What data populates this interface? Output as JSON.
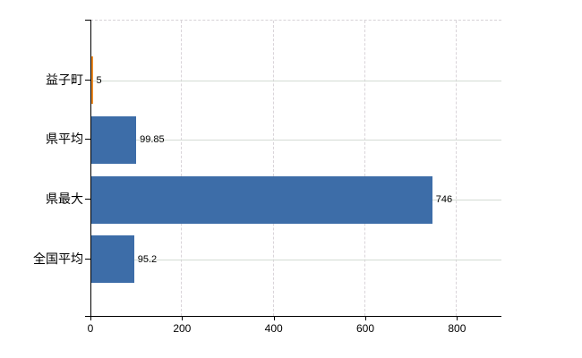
{
  "chart_data": {
    "type": "bar",
    "orientation": "horizontal",
    "title": "",
    "xlabel": "",
    "ylabel": "",
    "categories": [
      "益子町",
      "県平均",
      "県最大",
      "全国平均"
    ],
    "values": [
      5,
      99.85,
      746,
      95.2
    ],
    "value_labels": [
      "5",
      "99.85",
      "746",
      "95.2"
    ],
    "series": [
      {
        "name": "value",
        "values": [
          5,
          99.85,
          746,
          95.2
        ]
      }
    ],
    "bar_colors": [
      "#ec8b27",
      "#3d6da8",
      "#3d6da8",
      "#3d6da8"
    ],
    "x_ticks": [
      0,
      200,
      400,
      600,
      800
    ],
    "x_tick_labels": [
      "0",
      "200",
      "400",
      "600",
      "800"
    ],
    "xlim": [
      0,
      897
    ],
    "grid": true,
    "legend": false
  },
  "colors": {
    "bar_default": "#3d6da8",
    "bar_highlight": "#ec8b27",
    "axis": "#000000",
    "gridline_horizontal": "#d4dbd4",
    "gridline_vertical": "#d9d4d9",
    "background": "#ffffff",
    "text": "#000000"
  }
}
